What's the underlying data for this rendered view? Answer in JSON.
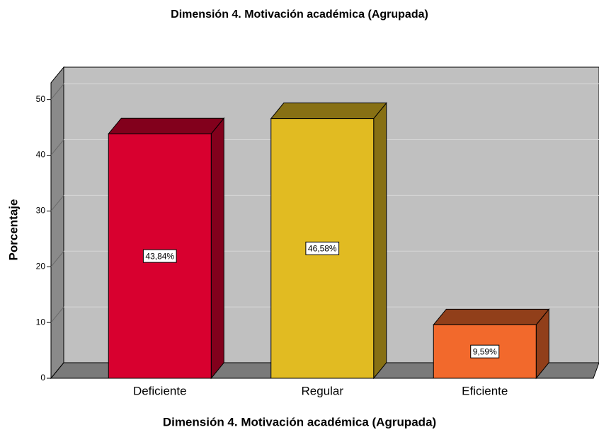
{
  "chart_data": {
    "type": "bar3d",
    "title": "Dimensión 4. Motivación académica (Agrupada)",
    "x_label": "Dimensión 4. Motivación académica (Agrupada)",
    "y_label": "Porcentaje",
    "categories": [
      "Deficiente",
      "Regular",
      "Eficiente"
    ],
    "values": [
      43.84,
      46.58,
      9.59
    ],
    "value_labels": [
      "43,84%",
      "46,58%",
      "9,59%"
    ],
    "colors": [
      "#d8002f",
      "#e1bb22",
      "#f2692c"
    ],
    "ylim": [
      0,
      53
    ],
    "yticks": [
      0,
      10,
      20,
      30,
      40,
      50
    ],
    "grid": true
  }
}
